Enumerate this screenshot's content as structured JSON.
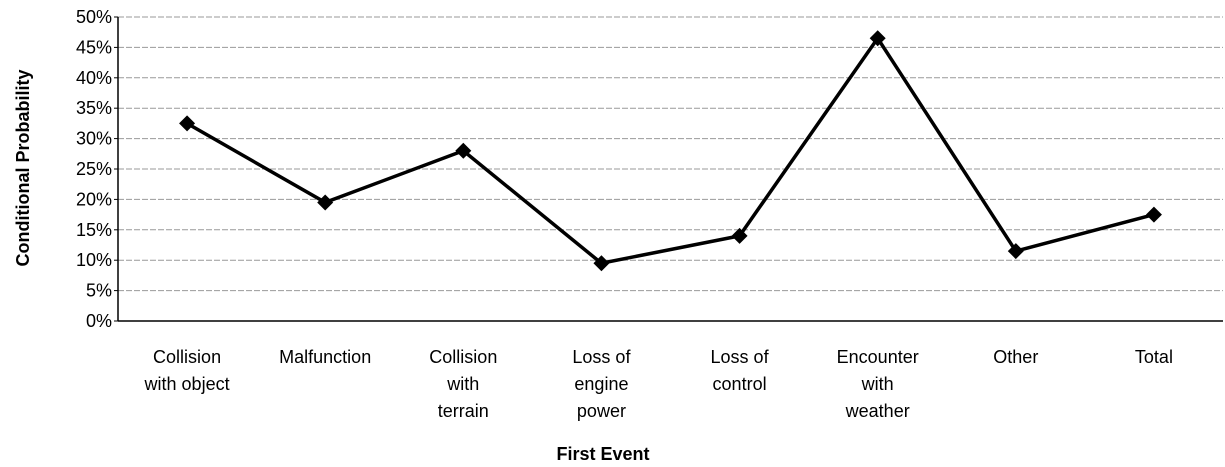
{
  "chart_data": {
    "type": "line",
    "x_label": "First Event",
    "y_label": "Conditional Probability",
    "categories": [
      [
        "Collision",
        "with  object"
      ],
      [
        "Malfunction"
      ],
      [
        "Collision",
        "with",
        "terrain"
      ],
      [
        "Loss of",
        "engine",
        "power"
      ],
      [
        "Loss of",
        "control"
      ],
      [
        "Encounter",
        "with",
        "weather"
      ],
      [
        "Other"
      ],
      [
        "Total"
      ]
    ],
    "values": [
      32.5,
      19.5,
      28,
      9.5,
      14,
      46.5,
      11.5,
      17.5
    ],
    "color": "#000000",
    "ylim": [
      0,
      50
    ],
    "yticks": [
      {
        "value": 0,
        "label": "0%"
      },
      {
        "value": 5,
        "label": "5%"
      },
      {
        "value": 10,
        "label": "10%"
      },
      {
        "value": 15,
        "label": "15%"
      },
      {
        "value": 20,
        "label": "20%"
      },
      {
        "value": 25,
        "label": "25%"
      },
      {
        "value": 30,
        "label": "30%"
      },
      {
        "value": 35,
        "label": "35%"
      },
      {
        "value": 40,
        "label": "40%"
      },
      {
        "value": 45,
        "label": "45%"
      },
      {
        "value": 50,
        "label": "50%"
      }
    ],
    "grid": true
  }
}
